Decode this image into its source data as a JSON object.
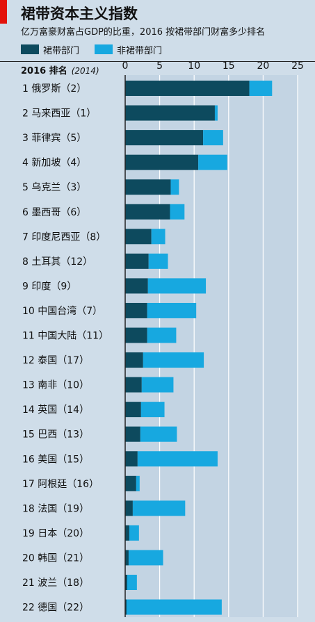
{
  "chart_data": {
    "type": "bar",
    "orientation": "horizontal",
    "stacked": true,
    "title": "裙带资本主义指数",
    "subtitle": "亿万富豪财富占GDP的比重，2016 按裙带部门财富多少排名",
    "column_header": "2016 排名",
    "column_header_note": "(2014)",
    "xlim": [
      0,
      25
    ],
    "xticks": [
      0,
      5,
      10,
      15,
      20,
      25
    ],
    "grid": true,
    "legend_position": "top-left",
    "categories": [
      "1 俄罗斯（2）",
      "2 马来西亚（1）",
      "3 菲律宾（5）",
      "4 新加坡（4）",
      "5 乌克兰（3）",
      "6 墨西哥（6）",
      "7 印度尼西亚（8）",
      "8 土耳其（12）",
      "9 印度（9）",
      "10 中国台湾（7）",
      "11 中国大陆（11）",
      "12 泰国（17）",
      "13 南非（10）",
      "14 英国（14）",
      "15 巴西（13）",
      "16 美国（15）",
      "17 阿根廷（16）",
      "18 法国（19）",
      "19 日本（20）",
      "20 韩国（21）",
      "21 波兰（18）",
      "22 德国（22）"
    ],
    "series": [
      {
        "name": "裙带部门",
        "color": "#0d4a5e",
        "values": [
          18.0,
          13.0,
          11.3,
          10.6,
          6.6,
          6.5,
          3.8,
          3.4,
          3.3,
          3.2,
          3.2,
          2.6,
          2.4,
          2.3,
          2.2,
          1.8,
          1.6,
          1.1,
          0.6,
          0.5,
          0.3,
          0.2
        ]
      },
      {
        "name": "非裙带部门",
        "color": "#17a8e0",
        "values": [
          3.3,
          0.4,
          2.9,
          4.2,
          1.2,
          2.1,
          2.0,
          2.8,
          8.4,
          7.1,
          4.2,
          8.8,
          4.6,
          3.4,
          5.3,
          11.6,
          0.5,
          7.6,
          1.4,
          5.0,
          1.4,
          13.8
        ]
      }
    ]
  }
}
